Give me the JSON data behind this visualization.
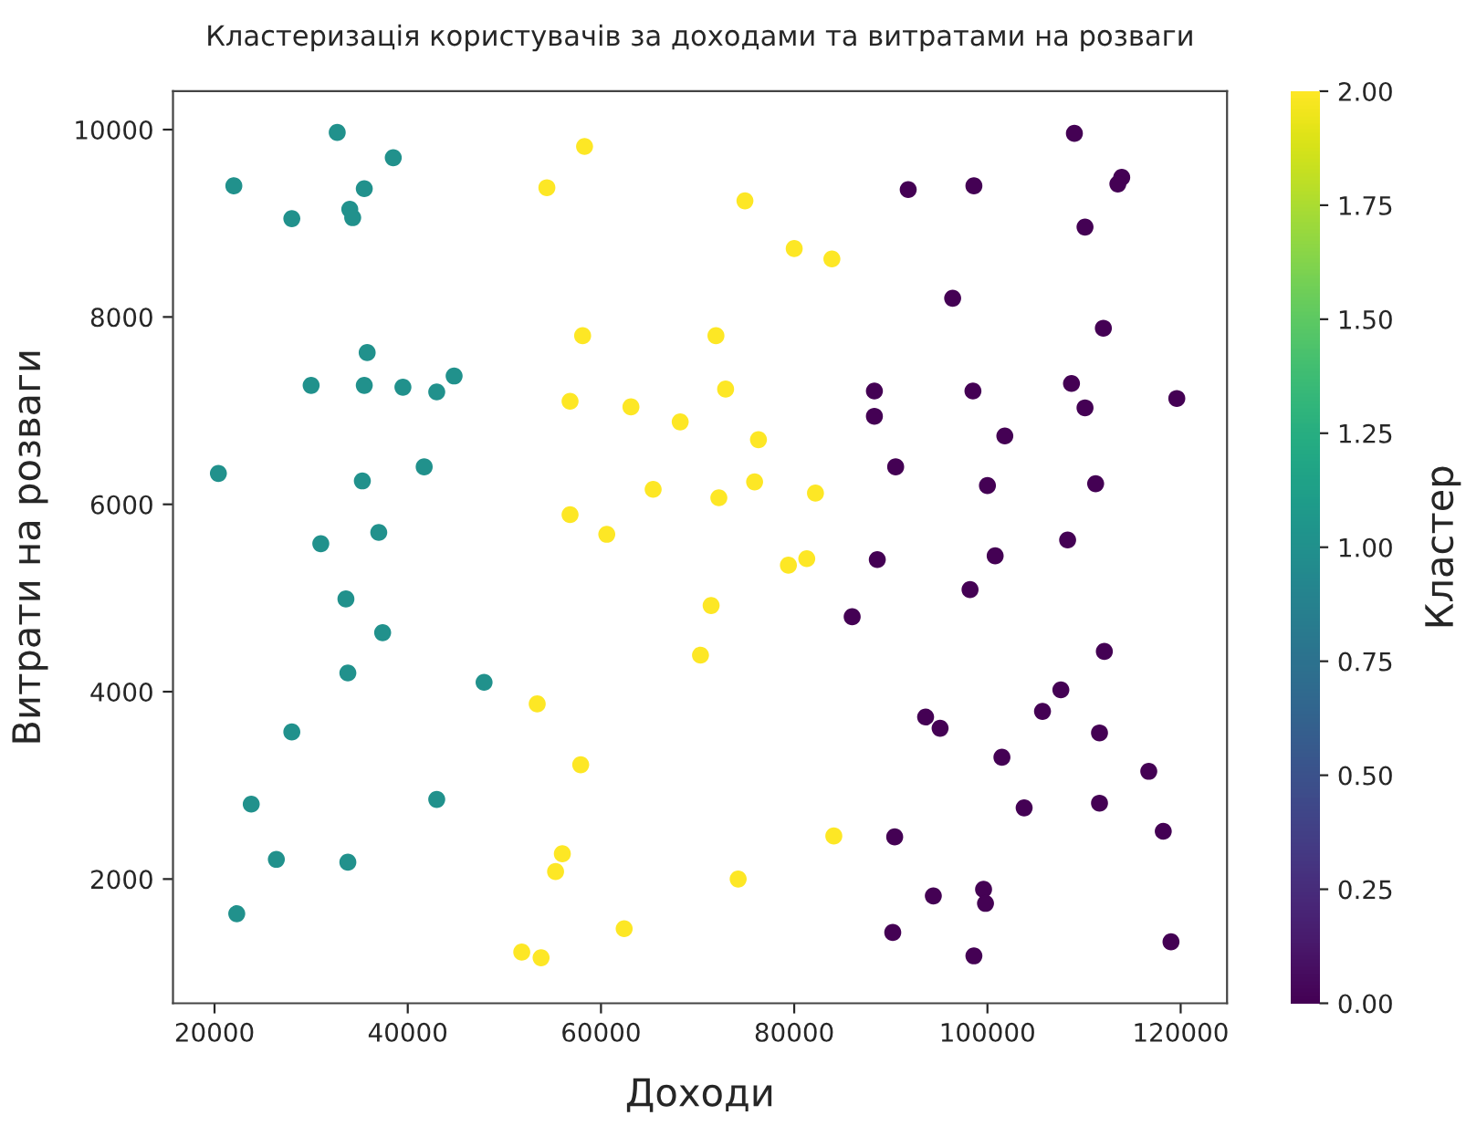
{
  "chart_data": {
    "type": "scatter",
    "title": "Кластеризація користувачів за доходами та витратами на розваги",
    "xlabel": "Доходи",
    "ylabel": "Витрати на розваги",
    "clabel": "Кластер",
    "x": [
      22000,
      32700,
      38500,
      35500,
      34000,
      34300,
      28000,
      35800,
      30000,
      35500,
      39500,
      43000,
      44800,
      20400,
      35300,
      41700,
      31000,
      37000,
      33600,
      37400,
      33800,
      47900,
      28000,
      23800,
      26400,
      33800,
      43000,
      22300,
      58300,
      54400,
      74900,
      80000,
      83900,
      58100,
      71900,
      56800,
      72900,
      63100,
      68200,
      76300,
      65400,
      75900,
      72200,
      82200,
      56800,
      60600,
      79400,
      81300,
      71400,
      70300,
      53400,
      57900,
      56000,
      55300,
      84100,
      74200,
      51800,
      53800,
      62400,
      109000,
      91800,
      98600,
      113900,
      113500,
      110100,
      96400,
      112000,
      88300,
      98500,
      108700,
      119600,
      110100,
      88300,
      101800,
      90500,
      100000,
      111200,
      100800,
      108300,
      98200,
      88600,
      86000,
      112100,
      107600,
      105700,
      93600,
      95100,
      111600,
      101500,
      116700,
      103800,
      111600,
      118200,
      90400,
      94400,
      99600,
      99800,
      90200,
      98600,
      119000
    ],
    "values": [
      9400,
      9970,
      9700,
      9370,
      9150,
      9060,
      9050,
      7620,
      7270,
      7270,
      7250,
      7200,
      7370,
      6330,
      6250,
      6400,
      5580,
      5700,
      4990,
      4630,
      4200,
      4100,
      3570,
      2800,
      2210,
      2180,
      2850,
      1630,
      9820,
      9380,
      9240,
      8730,
      8620,
      7800,
      7800,
      7100,
      7230,
      7040,
      6880,
      6690,
      6160,
      6240,
      6070,
      6120,
      5890,
      5680,
      5350,
      5420,
      4920,
      4390,
      3870,
      3220,
      2270,
      2080,
      2460,
      2000,
      1220,
      1160,
      1470,
      9960,
      9360,
      9400,
      9490,
      9420,
      8960,
      8200,
      7880,
      7210,
      7210,
      7290,
      7130,
      7030,
      6940,
      6730,
      6400,
      6200,
      6220,
      5450,
      5620,
      5090,
      5410,
      4800,
      4430,
      4020,
      3790,
      3730,
      3610,
      3560,
      3300,
      3150,
      2760,
      2810,
      2510,
      2450,
      1820,
      1890,
      1740,
      1430,
      1180,
      1330
    ],
    "cvalues": [
      1,
      1,
      1,
      1,
      1,
      1,
      1,
      1,
      1,
      1,
      1,
      1,
      1,
      1,
      1,
      1,
      1,
      1,
      1,
      1,
      1,
      1,
      1,
      1,
      1,
      1,
      1,
      1,
      2,
      2,
      2,
      2,
      2,
      2,
      2,
      2,
      2,
      2,
      2,
      2,
      2,
      2,
      2,
      2,
      2,
      2,
      2,
      2,
      2,
      2,
      2,
      2,
      2,
      2,
      2,
      2,
      2,
      2,
      2,
      0,
      0,
      0,
      0,
      0,
      0,
      0,
      0,
      0,
      0,
      0,
      0,
      0,
      0,
      0,
      0,
      0,
      0,
      0,
      0,
      0,
      0,
      0,
      0,
      0,
      0,
      0,
      0,
      0,
      0,
      0,
      0,
      0,
      0,
      0,
      0,
      0,
      0,
      0,
      0,
      0
    ],
    "xlim": [
      15700,
      124800
    ],
    "ylim": [
      674,
      10410
    ],
    "xticks": [
      20000,
      40000,
      60000,
      80000,
      100000,
      120000
    ],
    "yticks": [
      2000,
      4000,
      6000,
      8000,
      10000
    ],
    "clim": [
      0,
      2
    ],
    "cticks": [
      {
        "value": 0,
        "label": "0.00"
      },
      {
        "value": 0.25,
        "label": "0.25"
      },
      {
        "value": 0.5,
        "label": "0.50"
      },
      {
        "value": 0.75,
        "label": "0.75"
      },
      {
        "value": 1,
        "label": "1.00"
      },
      {
        "value": 1.25,
        "label": "1.25"
      },
      {
        "value": 1.5,
        "label": "1.50"
      },
      {
        "value": 1.75,
        "label": "1.75"
      },
      {
        "value": 2,
        "label": "2.00"
      }
    ],
    "grid": false,
    "marker": "circle"
  }
}
